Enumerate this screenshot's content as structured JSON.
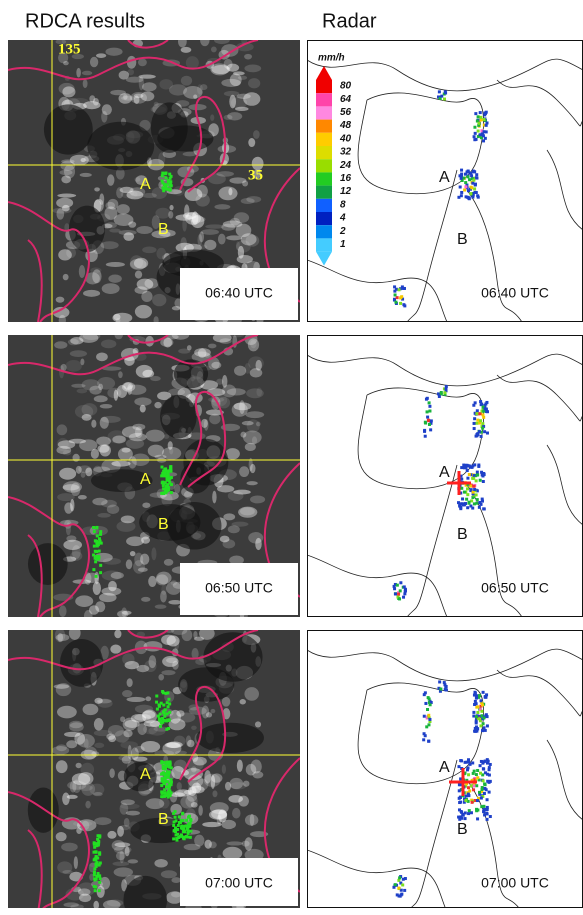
{
  "header": {
    "left_title": "RDCA results",
    "right_title": "Radar"
  },
  "legend": {
    "unit": "mm/h",
    "levels": [
      "80",
      "64",
      "56",
      "48",
      "40",
      "32",
      "24",
      "16",
      "12",
      "8",
      "4",
      "2",
      "1"
    ]
  },
  "grid_labels": {
    "longitude": "135",
    "latitude": "35"
  },
  "rows": [
    {
      "satellite": {
        "labels": [
          "A",
          "B"
        ],
        "time": "06:40 UTC"
      },
      "radar": {
        "labels": [
          "A",
          "B"
        ],
        "time": "06:40 UTC"
      }
    },
    {
      "satellite": {
        "labels": [
          "A",
          "B"
        ],
        "time": "06:50 UTC"
      },
      "radar": {
        "labels": [
          "A",
          "B"
        ],
        "time": "06:50 UTC"
      }
    },
    {
      "satellite": {
        "labels": [
          "A",
          "B"
        ],
        "time": "07:00 UTC"
      },
      "radar": {
        "labels": [
          "A",
          "B"
        ],
        "time": "07:00 UTC"
      }
    }
  ]
}
